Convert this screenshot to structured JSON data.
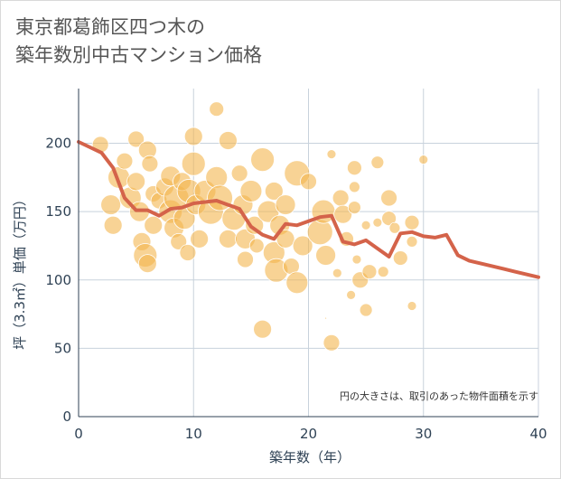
{
  "title_lines": [
    "東京都葛飾区四つ木の",
    "築年数別中古マンション価格"
  ],
  "chart_data": {
    "type": "scatter",
    "title": "東京都葛飾区四つ木の築年数別中古マンション価格",
    "xlabel": "築年数（年）",
    "ylabel": "坪（3.3㎡）単価（万円）",
    "xlim": [
      0,
      40
    ],
    "ylim": [
      0,
      240
    ],
    "xticks": [
      0,
      10,
      20,
      30,
      40
    ],
    "yticks": [
      0,
      50,
      100,
      150,
      200
    ],
    "grid": true,
    "note": "円の大きさは、取引のあった物件面積を示す",
    "colors": {
      "bubble": "#f4b54f",
      "line": "#d4634a",
      "grid": "#c8d2dc",
      "text": "#2f4255"
    },
    "series": [
      {
        "type": "line",
        "x": [
          0,
          1,
          2,
          3,
          4,
          5,
          6,
          7,
          8,
          9,
          10,
          11,
          12,
          13,
          14,
          15,
          16,
          17,
          18,
          19,
          20,
          21,
          22,
          23,
          24,
          25,
          26,
          27,
          28,
          29,
          30,
          31,
          32,
          33,
          34,
          35,
          36,
          37,
          38,
          39,
          40
        ],
        "values": [
          201,
          197,
          193,
          182,
          160,
          151,
          151,
          147,
          152,
          153,
          156,
          157,
          158,
          155,
          152,
          139,
          133,
          130,
          141,
          140,
          143,
          146,
          147,
          128,
          126,
          129,
          123,
          117,
          134,
          135,
          132,
          131,
          133,
          118,
          114,
          112,
          110,
          108,
          106,
          104,
          102
        ]
      },
      {
        "type": "bubble",
        "points": [
          {
            "x": 1.9,
            "y": 199,
            "s": 9
          },
          {
            "x": 3.5,
            "y": 175,
            "s": 12
          },
          {
            "x": 2.8,
            "y": 155,
            "s": 11
          },
          {
            "x": 3.0,
            "y": 140,
            "s": 10
          },
          {
            "x": 4.0,
            "y": 187,
            "s": 9
          },
          {
            "x": 4.5,
            "y": 160,
            "s": 12
          },
          {
            "x": 5.0,
            "y": 203,
            "s": 9
          },
          {
            "x": 5.0,
            "y": 172,
            "s": 10
          },
          {
            "x": 5.3,
            "y": 150,
            "s": 11
          },
          {
            "x": 5.5,
            "y": 128,
            "s": 10
          },
          {
            "x": 5.8,
            "y": 118,
            "s": 13
          },
          {
            "x": 6.0,
            "y": 112,
            "s": 10
          },
          {
            "x": 6.0,
            "y": 195,
            "s": 10
          },
          {
            "x": 6.2,
            "y": 185,
            "s": 9
          },
          {
            "x": 6.5,
            "y": 163,
            "s": 9
          },
          {
            "x": 6.5,
            "y": 140,
            "s": 10
          },
          {
            "x": 7.0,
            "y": 158,
            "s": 9
          },
          {
            "x": 7.5,
            "y": 168,
            "s": 10
          },
          {
            "x": 8.0,
            "y": 176,
            "s": 11
          },
          {
            "x": 8.0,
            "y": 150,
            "s": 13
          },
          {
            "x": 8.3,
            "y": 138,
            "s": 11
          },
          {
            "x": 8.5,
            "y": 160,
            "s": 14
          },
          {
            "x": 8.7,
            "y": 128,
            "s": 9
          },
          {
            "x": 9.0,
            "y": 172,
            "s": 10
          },
          {
            "x": 9.2,
            "y": 145,
            "s": 12
          },
          {
            "x": 9.5,
            "y": 120,
            "s": 9
          },
          {
            "x": 9.6,
            "y": 165,
            "s": 13
          },
          {
            "x": 10.0,
            "y": 205,
            "s": 10
          },
          {
            "x": 10.0,
            "y": 185,
            "s": 13
          },
          {
            "x": 10.2,
            "y": 155,
            "s": 11
          },
          {
            "x": 10.5,
            "y": 130,
            "s": 10
          },
          {
            "x": 11.0,
            "y": 165,
            "s": 12
          },
          {
            "x": 11.5,
            "y": 150,
            "s": 14
          },
          {
            "x": 12.0,
            "y": 225,
            "s": 8
          },
          {
            "x": 12.0,
            "y": 175,
            "s": 12
          },
          {
            "x": 12.3,
            "y": 160,
            "s": 14
          },
          {
            "x": 13.0,
            "y": 202,
            "s": 10
          },
          {
            "x": 13.0,
            "y": 130,
            "s": 10
          },
          {
            "x": 13.5,
            "y": 145,
            "s": 13
          },
          {
            "x": 14.0,
            "y": 178,
            "s": 9
          },
          {
            "x": 14.3,
            "y": 155,
            "s": 11
          },
          {
            "x": 14.5,
            "y": 130,
            "s": 11
          },
          {
            "x": 14.5,
            "y": 115,
            "s": 9
          },
          {
            "x": 15.0,
            "y": 165,
            "s": 12
          },
          {
            "x": 15.3,
            "y": 140,
            "s": 10
          },
          {
            "x": 15.5,
            "y": 125,
            "s": 8
          },
          {
            "x": 16.0,
            "y": 188,
            "s": 13
          },
          {
            "x": 16.0,
            "y": 64,
            "s": 10
          },
          {
            "x": 16.5,
            "y": 150,
            "s": 12
          },
          {
            "x": 17.0,
            "y": 165,
            "s": 10
          },
          {
            "x": 17.0,
            "y": 120,
            "s": 12
          },
          {
            "x": 17.2,
            "y": 107,
            "s": 13
          },
          {
            "x": 17.5,
            "y": 140,
            "s": 11
          },
          {
            "x": 18.0,
            "y": 155,
            "s": 11
          },
          {
            "x": 18.0,
            "y": 130,
            "s": 10
          },
          {
            "x": 18.5,
            "y": 110,
            "s": 9
          },
          {
            "x": 19.0,
            "y": 178,
            "s": 14
          },
          {
            "x": 19.0,
            "y": 98,
            "s": 12
          },
          {
            "x": 19.5,
            "y": 125,
            "s": 11
          },
          {
            "x": 20.0,
            "y": 172,
            "s": 9
          },
          {
            "x": 21.0,
            "y": 135,
            "s": 14
          },
          {
            "x": 21.3,
            "y": 150,
            "s": 13
          },
          {
            "x": 21.5,
            "y": 118,
            "s": 11
          },
          {
            "x": 21.5,
            "y": 72,
            "s": 1
          },
          {
            "x": 22.0,
            "y": 192,
            "s": 5
          },
          {
            "x": 22.0,
            "y": 54,
            "s": 9
          },
          {
            "x": 22.5,
            "y": 105,
            "s": 5
          },
          {
            "x": 22.8,
            "y": 160,
            "s": 9
          },
          {
            "x": 23.0,
            "y": 148,
            "s": 10
          },
          {
            "x": 23.3,
            "y": 130,
            "s": 8
          },
          {
            "x": 23.7,
            "y": 89,
            "s": 5
          },
          {
            "x": 24.0,
            "y": 182,
            "s": 8
          },
          {
            "x": 24.0,
            "y": 168,
            "s": 6
          },
          {
            "x": 24.0,
            "y": 153,
            "s": 7
          },
          {
            "x": 24.2,
            "y": 115,
            "s": 5
          },
          {
            "x": 24.5,
            "y": 100,
            "s": 9
          },
          {
            "x": 25.0,
            "y": 140,
            "s": 5
          },
          {
            "x": 25.3,
            "y": 106,
            "s": 8
          },
          {
            "x": 25.0,
            "y": 78,
            "s": 7
          },
          {
            "x": 26.0,
            "y": 186,
            "s": 7
          },
          {
            "x": 26.0,
            "y": 142,
            "s": 5
          },
          {
            "x": 26.5,
            "y": 106,
            "s": 6
          },
          {
            "x": 27.0,
            "y": 160,
            "s": 9
          },
          {
            "x": 27.0,
            "y": 145,
            "s": 8
          },
          {
            "x": 27.5,
            "y": 138,
            "s": 6
          },
          {
            "x": 28.0,
            "y": 116,
            "s": 8
          },
          {
            "x": 29.0,
            "y": 142,
            "s": 8
          },
          {
            "x": 29.0,
            "y": 128,
            "s": 6
          },
          {
            "x": 29.0,
            "y": 81,
            "s": 5
          },
          {
            "x": 30.0,
            "y": 188,
            "s": 5
          }
        ]
      }
    ]
  }
}
